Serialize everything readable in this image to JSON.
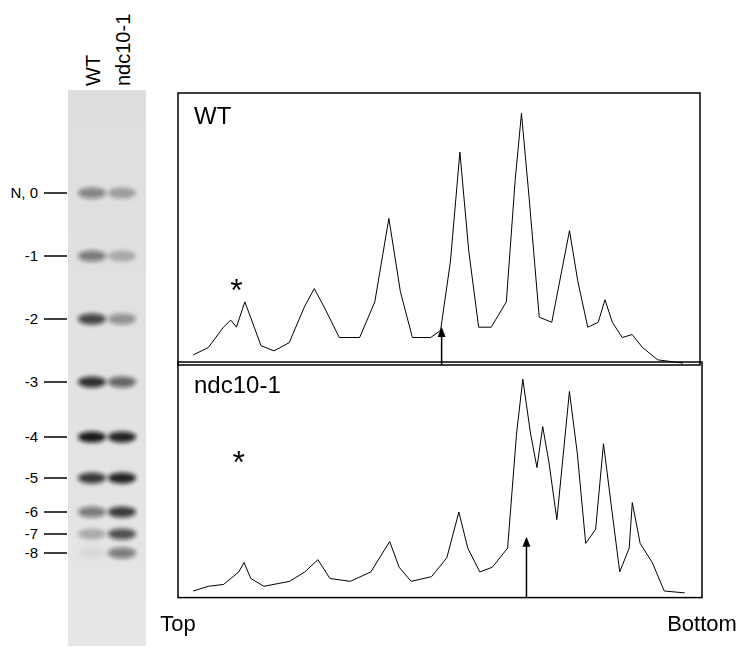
{
  "gel": {
    "lanes": [
      "WT",
      "ndc10-1"
    ],
    "bands": [
      {
        "label": "N, 0",
        "intensity": [
          0.45,
          0.3
        ]
      },
      {
        "label": "-1",
        "intensity": [
          0.5,
          0.25
        ]
      },
      {
        "label": "-2",
        "intensity": [
          0.75,
          0.4
        ]
      },
      {
        "label": "-3",
        "intensity": [
          0.85,
          0.6
        ]
      },
      {
        "label": "-4",
        "intensity": [
          0.95,
          0.9
        ]
      },
      {
        "label": "-5",
        "intensity": [
          0.8,
          0.9
        ]
      },
      {
        "label": "-6",
        "intensity": [
          0.5,
          0.8
        ]
      },
      {
        "label": "-7",
        "intensity": [
          0.25,
          0.7
        ]
      },
      {
        "label": "-8",
        "intensity": [
          0.05,
          0.5
        ]
      }
    ]
  },
  "chart_data": [
    {
      "type": "line",
      "title": "WT",
      "color": "#000000",
      "x": [
        2.9,
        5.8,
        8.7,
        10.1,
        11.2,
        12.8,
        13.9,
        15.9,
        18.4,
        21.3,
        24.2,
        26.1,
        28.0,
        30.9,
        34.8,
        37.7,
        40.4,
        42.6,
        44.9,
        48.4,
        50.3,
        52.2,
        54.0,
        55.7,
        57.6,
        60.0,
        62.9,
        64.6,
        65.8,
        67.3,
        69.2,
        71.6,
        73.5,
        75.0,
        76.6,
        78.5,
        80.5,
        81.8,
        83.2,
        85.1,
        87.0,
        89.0,
        91.9,
        96.7
      ],
      "values": [
        3.7,
        6.4,
        13.9,
        16.5,
        13.9,
        23.2,
        17.6,
        7.1,
        5.2,
        8.2,
        21.3,
        28.1,
        21.3,
        10.1,
        10.1,
        23.2,
        53.9,
        27.0,
        10.1,
        10.1,
        12.7,
        38.2,
        78.3,
        41.9,
        13.9,
        13.9,
        23.2,
        68.2,
        92.5,
        60.7,
        17.6,
        15.7,
        34.5,
        49.4,
        30.7,
        13.9,
        15.7,
        24.0,
        15.7,
        10.1,
        11.2,
        6.4,
        1.9,
        0.7
      ],
      "xlim": [
        0,
        100
      ],
      "ylim": [
        0,
        100
      ],
      "tick_labels": false,
      "annotations": [
        {
          "text": "*",
          "x": 11.2,
          "y": 28.8
        }
      ],
      "arrows": [
        {
          "x": 50.5,
          "y": 14
        }
      ]
    },
    {
      "type": "line",
      "title": "ndc10-1",
      "color": "#000000",
      "x": [
        2.9,
        5.8,
        8.7,
        11.6,
        12.6,
        13.9,
        16.4,
        21.3,
        24.2,
        26.7,
        29.0,
        32.9,
        36.8,
        40.4,
        42.2,
        44.5,
        48.4,
        51.3,
        53.6,
        55.3,
        57.6,
        60.0,
        62.9,
        64.6,
        65.8,
        67.3,
        68.5,
        69.6,
        70.8,
        72.3,
        74.7,
        76.2,
        77.8,
        79.7,
        81.2,
        82.8,
        84.3,
        86.1,
        86.7,
        88.2,
        90.5,
        92.8,
        96.7
      ],
      "values": [
        2.8,
        4.8,
        5.6,
        10.9,
        14.9,
        8.1,
        4.8,
        6.9,
        10.9,
        16.1,
        8.1,
        6.9,
        10.9,
        23.8,
        12.9,
        6.9,
        8.9,
        16.9,
        36.3,
        21.0,
        10.9,
        12.9,
        21.0,
        69.4,
        92.7,
        69.4,
        55.2,
        72.6,
        57.3,
        33.1,
        87.5,
        61.3,
        23.0,
        29.0,
        65.3,
        37.1,
        10.9,
        21.0,
        40.3,
        23.0,
        14.9,
        2.8,
        2.0
      ],
      "xlim": [
        0,
        100
      ],
      "ylim": [
        0,
        100
      ],
      "tick_labels": "x",
      "xticks": [
        {
          "value": 0,
          "label": "Top"
        },
        {
          "value": 100,
          "label": "Bottom"
        }
      ],
      "annotations": [
        {
          "text": "*",
          "x": 11.6,
          "y": 59
        }
      ],
      "arrows": [
        {
          "x": 66.5,
          "y": 25.8
        }
      ]
    }
  ]
}
